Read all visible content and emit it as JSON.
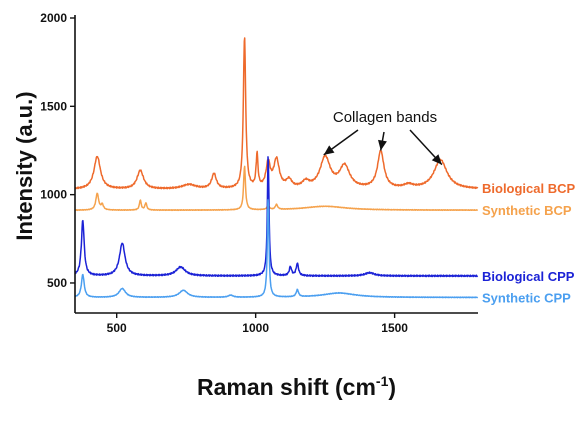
{
  "chart_data": {
    "type": "line",
    "xlabel": "Raman shift (cm",
    "xlabel_sup": "-1",
    "xlabel_close": ")",
    "ylabel": "Intensity (a.u.)",
    "xlim": [
      350,
      1800
    ],
    "ylim": [
      330,
      2000
    ],
    "xticks": [
      500,
      1000,
      1500
    ],
    "yticks": [
      500,
      1000,
      1500,
      2000
    ],
    "grid": false,
    "legend": "inline-right",
    "annotation": {
      "text": "Collagen bands",
      "targets": [
        {
          "x": 1245,
          "y": 1225
        },
        {
          "x": 1450,
          "y": 1250
        },
        {
          "x": 1670,
          "y": 1170
        }
      ]
    },
    "series": [
      {
        "name": "Biological BCP",
        "color": "#ee6a2c",
        "baseline": 1030,
        "wiggle": 5,
        "peaks": [
          {
            "x": 430,
            "h": 185,
            "w": 14
          },
          {
            "x": 585,
            "h": 105,
            "w": 14
          },
          {
            "x": 760,
            "h": 25,
            "w": 30
          },
          {
            "x": 850,
            "h": 85,
            "w": 10
          },
          {
            "x": 960,
            "h": 860,
            "w": 5
          },
          {
            "x": 1005,
            "h": 190,
            "w": 4
          },
          {
            "x": 1045,
            "h": 140,
            "w": 9
          },
          {
            "x": 1075,
            "h": 160,
            "w": 12
          },
          {
            "x": 1120,
            "h": 45,
            "w": 12
          },
          {
            "x": 1180,
            "h": 35,
            "w": 15
          },
          {
            "x": 1250,
            "h": 175,
            "w": 22
          },
          {
            "x": 1320,
            "h": 125,
            "w": 22
          },
          {
            "x": 1450,
            "h": 210,
            "w": 14
          },
          {
            "x": 1550,
            "h": 20,
            "w": 20
          },
          {
            "x": 1665,
            "h": 165,
            "w": 28
          }
        ]
      },
      {
        "name": "Synthetic BCP",
        "color": "#f5a24c",
        "baseline": 912,
        "wiggle": 2,
        "peaks": [
          {
            "x": 430,
            "h": 95,
            "w": 6
          },
          {
            "x": 448,
            "h": 30,
            "w": 5
          },
          {
            "x": 585,
            "h": 55,
            "w": 4
          },
          {
            "x": 605,
            "h": 40,
            "w": 4
          },
          {
            "x": 960,
            "h": 250,
            "w": 4
          },
          {
            "x": 1045,
            "h": 22,
            "w": 5
          },
          {
            "x": 1075,
            "h": 28,
            "w": 5
          },
          {
            "x": 1250,
            "h": 22,
            "w": 90
          }
        ]
      },
      {
        "name": "Biological CPP",
        "color": "#1b22d6",
        "baseline": 540,
        "wiggle": 5,
        "peaks": [
          {
            "x": 378,
            "h": 315,
            "w": 6
          },
          {
            "x": 520,
            "h": 185,
            "w": 12
          },
          {
            "x": 730,
            "h": 50,
            "w": 20
          },
          {
            "x": 1045,
            "h": 690,
            "w": 3.5
          },
          {
            "x": 1125,
            "h": 50,
            "w": 5
          },
          {
            "x": 1150,
            "h": 70,
            "w": 5
          },
          {
            "x": 1410,
            "h": 18,
            "w": 20
          }
        ]
      },
      {
        "name": "Synthetic CPP",
        "color": "#4b9ff0",
        "baseline": 418,
        "wiggle": 2,
        "peaks": [
          {
            "x": 378,
            "h": 130,
            "w": 6
          },
          {
            "x": 520,
            "h": 50,
            "w": 14
          },
          {
            "x": 740,
            "h": 40,
            "w": 18
          },
          {
            "x": 910,
            "h": 12,
            "w": 10
          },
          {
            "x": 1045,
            "h": 560,
            "w": 3.5
          },
          {
            "x": 1150,
            "h": 40,
            "w": 5
          },
          {
            "x": 1300,
            "h": 25,
            "w": 70
          }
        ]
      }
    ]
  }
}
